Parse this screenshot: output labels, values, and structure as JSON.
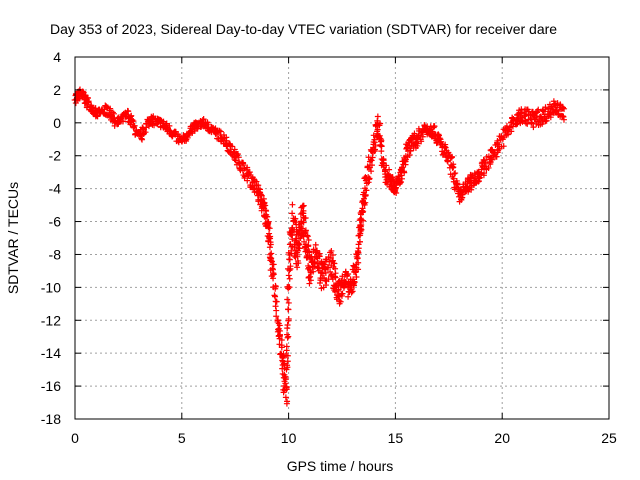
{
  "chart_data": {
    "type": "scatter",
    "title": "Day 353 of 2023, Sidereal Day-to-day VTEC variation (SDTVAR) for receiver dare",
    "xlabel": "GPS time / hours",
    "ylabel": "SDTVAR / TECUs",
    "xlim": [
      0,
      25
    ],
    "ylim": [
      -18,
      4
    ],
    "xticks": [
      0,
      5,
      10,
      15,
      20,
      25
    ],
    "yticks": [
      -18,
      -16,
      -14,
      -12,
      -10,
      -8,
      -6,
      -4,
      -2,
      0,
      2,
      4
    ],
    "grid": true,
    "marker": "+",
    "series": [
      {
        "name": "SDTVAR",
        "color": "#ff0000",
        "x": [
          0.0,
          0.3,
          0.6,
          1.0,
          1.5,
          2.0,
          2.5,
          3.0,
          3.5,
          4.0,
          4.5,
          5.0,
          5.5,
          6.0,
          6.5,
          7.0,
          7.5,
          8.0,
          8.5,
          8.8,
          9.0,
          9.2,
          9.5,
          9.7,
          9.9,
          10.0,
          10.2,
          10.4,
          10.6,
          10.8,
          11.0,
          11.3,
          11.6,
          12.0,
          12.3,
          12.6,
          12.9,
          13.2,
          13.4,
          13.6,
          13.9,
          14.2,
          14.5,
          14.8,
          15.0,
          15.3,
          15.6,
          16.0,
          16.4,
          16.8,
          17.2,
          17.6,
          18.0,
          18.3,
          18.6,
          19.0,
          19.5,
          20.0,
          20.5,
          21.0,
          21.5,
          22.0,
          22.5,
          22.9
        ],
        "y": [
          1.5,
          1.8,
          1.2,
          0.5,
          0.8,
          0.0,
          0.5,
          -1.0,
          0.2,
          0.0,
          -0.5,
          -1.2,
          -0.3,
          0.0,
          -0.5,
          -1.0,
          -2.0,
          -3.0,
          -4.0,
          -5.0,
          -6.0,
          -8.5,
          -12.0,
          -14.5,
          -16.5,
          -9.0,
          -6.0,
          -8.0,
          -5.5,
          -7.0,
          -9.0,
          -8.0,
          -9.5,
          -8.5,
          -10.5,
          -9.5,
          -10.2,
          -8.5,
          -6.0,
          -4.0,
          -2.0,
          0.0,
          -3.0,
          -3.5,
          -4.0,
          -3.0,
          -1.5,
          -1.0,
          -0.3,
          -0.5,
          -1.5,
          -2.5,
          -4.5,
          -4.0,
          -3.5,
          -3.0,
          -2.0,
          -1.0,
          0.0,
          0.5,
          0.2,
          0.5,
          1.0,
          0.5
        ],
        "spread": [
          0.6,
          0.6,
          0.6,
          0.5,
          0.6,
          0.7,
          0.6,
          0.7,
          0.6,
          0.5,
          0.6,
          0.6,
          0.5,
          0.5,
          0.5,
          0.7,
          0.7,
          0.8,
          1.0,
          1.0,
          1.2,
          1.2,
          1.6,
          2.0,
          1.6,
          2.0,
          2.5,
          2.0,
          2.2,
          2.0,
          2.0,
          1.8,
          1.8,
          1.6,
          1.6,
          1.6,
          1.2,
          1.6,
          1.5,
          1.5,
          1.4,
          1.4,
          1.2,
          1.0,
          0.8,
          0.9,
          1.0,
          1.0,
          0.8,
          0.8,
          0.9,
          1.0,
          0.9,
          0.9,
          0.9,
          0.9,
          1.0,
          1.0,
          1.0,
          1.0,
          1.0,
          1.0,
          0.8,
          0.8
        ]
      }
    ]
  }
}
